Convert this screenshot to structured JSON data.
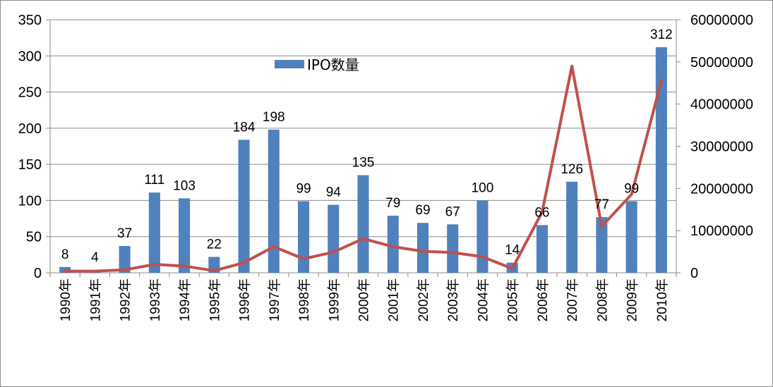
{
  "chart_data": {
    "type": "bar",
    "categories": [
      "1990年",
      "1991年",
      "1992年",
      "1993年",
      "1994年",
      "1995年",
      "1996年",
      "1997年",
      "1998年",
      "1999年",
      "2000年",
      "2001年",
      "2002年",
      "2003年",
      "2004年",
      "2005年",
      "2006年",
      "2007年",
      "2008年",
      "2009年",
      "2010年"
    ],
    "series": [
      {
        "name": "IPO数量",
        "type": "bar",
        "axis": "left",
        "color": "#4f81bd",
        "values": [
          8,
          4,
          37,
          111,
          103,
          22,
          184,
          198,
          99,
          94,
          135,
          79,
          69,
          67,
          100,
          14,
          66,
          126,
          77,
          99,
          312
        ],
        "labels": [
          "8",
          "4",
          "37",
          "111",
          "103",
          "22",
          "184",
          "198",
          "99",
          "94",
          "135",
          "79",
          "69",
          "67",
          "100",
          "14",
          "66",
          "126",
          "77",
          "99",
          "312"
        ]
      },
      {
        "type": "line",
        "axis": "right",
        "color": "#c0504d",
        "values": [
          400000,
          400000,
          700000,
          2000000,
          1600000,
          500000,
          2400000,
          6200000,
          3300000,
          4900000,
          8100000,
          6200000,
          5100000,
          4800000,
          3800000,
          1000000,
          14400000,
          49000000,
          11000000,
          18600000,
          45500000
        ]
      }
    ],
    "y_left": {
      "min": 0,
      "max": 350,
      "ticks": [
        "0",
        "50",
        "100",
        "150",
        "200",
        "250",
        "300",
        "350"
      ]
    },
    "y_right": {
      "min": 0,
      "max": 60000000,
      "ticks": [
        "0",
        "10000000",
        "20000000",
        "30000000",
        "40000000",
        "50000000",
        "60000000"
      ]
    },
    "legend": {
      "position": "top-center",
      "label": "IPO数量",
      "color": "#4f81bd"
    },
    "grid": true,
    "title": "",
    "xlabel": "",
    "ylabel": ""
  }
}
